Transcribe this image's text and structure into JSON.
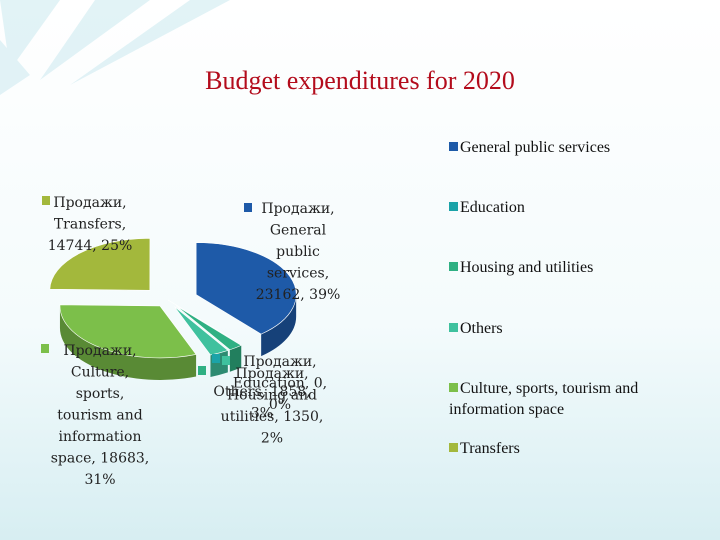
{
  "colors": {
    "title": "#b30c1c",
    "general_public_services": "#1e5aa8",
    "education": "#1ba3a8",
    "housing_and_utilities": "#2fb083",
    "others": "#3fc19e",
    "culture": "#7cbf4a",
    "transfers": "#a3b83c"
  },
  "chart_data": {
    "type": "pie",
    "title": "Budget expenditures for 2020",
    "series_name": "Продажи",
    "slices": [
      {
        "category": "General public services",
        "value": 23162,
        "percent": "39%",
        "color_key": "general_public_services"
      },
      {
        "category": "Education",
        "value": 0,
        "percent": "0%",
        "color_key": "education"
      },
      {
        "category": "Housing and utilities",
        "value": 1350,
        "percent": "2%",
        "color_key": "housing_and_utilities"
      },
      {
        "category": "Others",
        "value": 1858,
        "percent": "3%",
        "color_key": "others"
      },
      {
        "category": "Culture, sports, tourism and information space",
        "value": 18683,
        "percent": "31%",
        "color_key": "culture"
      },
      {
        "category": "Transfers",
        "value": 14744,
        "percent": "25%",
        "color_key": "transfers"
      }
    ],
    "legend": {
      "position": "right",
      "entries": [
        "General public services",
        "Education",
        "Housing and utilities",
        "Others",
        "Culture, sports, tourism and information space",
        "Transfers"
      ]
    },
    "data_labels": [
      {
        "key": "gps",
        "lines": [
          "Продажи,",
          "General",
          "public",
          "services,",
          "23162, 39%"
        ]
      },
      {
        "key": "transfers",
        "lines": [
          "Продажи,",
          "Transfers,",
          "14744, 25%"
        ]
      },
      {
        "key": "culture",
        "lines": [
          "Продажи,",
          "Culture,",
          "sports,",
          "tourism and",
          "information",
          "space, 18683,",
          "31%"
        ]
      },
      {
        "key": "small_a",
        "lines": [
          "Продажи,",
          "Housing and",
          "utilities, 1350,",
          "2%"
        ]
      },
      {
        "key": "small_b",
        "lines": [
          "Продажи,",
          "Education, 0,",
          "0%"
        ]
      },
      {
        "key": "small_c",
        "lines": [
          "Others, 1858,",
          "3%"
        ]
      }
    ]
  }
}
